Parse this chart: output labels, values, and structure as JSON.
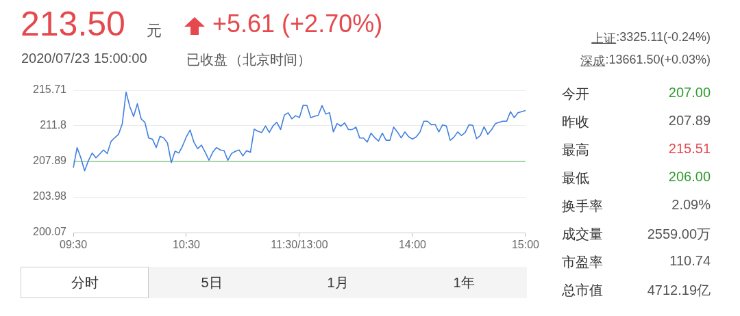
{
  "chart_data": {
    "type": "line",
    "title": "213.50",
    "annotations": [
      "元",
      "+5.61 (+2.70%)",
      "2020/07/23 15:00:00",
      "已收盘",
      "（北京时间）",
      "上证",
      ":3325.11(-0.24%)",
      "深成",
      ":13661.50(+0.03%)",
      "今开",
      "207.00",
      "昨收",
      "207.89",
      "最高",
      "215.51",
      "最低",
      "206.00",
      "换手率",
      "2.09%",
      "成交量",
      "2559.00万",
      "市盈率",
      "110.74",
      "总市值",
      "4712.19亿",
      "分时",
      "5日",
      "1月",
      "1年"
    ],
    "categories": [
      "09:30",
      null,
      null,
      null,
      null,
      null,
      null,
      null,
      null,
      null,
      null,
      null,
      null,
      null,
      null,
      null,
      null,
      null,
      null,
      null,
      null,
      null,
      null,
      null,
      null,
      null,
      null,
      null,
      null,
      null,
      "10:30",
      null,
      null,
      null,
      null,
      null,
      null,
      null,
      null,
      null,
      null,
      null,
      null,
      null,
      null,
      null,
      null,
      null,
      null,
      null,
      null,
      null,
      null,
      null,
      null,
      null,
      null,
      null,
      null,
      null,
      "11:30/13:00",
      null,
      null,
      null,
      null,
      null,
      null,
      null,
      null,
      null,
      null,
      null,
      null,
      null,
      null,
      null,
      null,
      null,
      null,
      null,
      null,
      null,
      null,
      null,
      null,
      null,
      null,
      null,
      null,
      null,
      "14:00",
      null,
      null,
      null,
      null,
      null,
      null,
      null,
      null,
      null,
      null,
      null,
      null,
      null,
      null,
      null,
      null,
      null,
      null,
      null,
      null,
      null,
      null,
      null,
      null,
      null,
      null,
      null,
      null,
      null,
      "15:00"
    ],
    "series": [
      {
        "color": "#3f7fe0",
        "values": [
          207.18,
          209.41,
          208.28,
          206.86,
          207.97,
          208.81,
          208.28,
          208.7,
          209.15,
          208.76,
          210.08,
          210.5,
          210.87,
          212.05,
          215.51,
          213.9,
          212.84,
          214.23,
          212.57,
          212.18,
          210.47,
          210.34,
          209.41,
          210.65,
          210.47,
          209.9,
          207.76,
          209.02,
          208.81,
          209.6,
          210.6,
          211.34,
          210.0,
          209.29,
          209.68,
          208.89,
          208.02,
          208.9,
          209.41,
          209.15,
          209.07,
          208.02,
          208.76,
          209.0,
          209.15,
          208.5,
          209.07,
          208.89,
          211.44,
          211.2,
          211.07,
          211.78,
          211.07,
          211.8,
          212.18,
          211.39,
          212.97,
          213.24,
          212.57,
          212.92,
          212.71,
          214.08,
          214.03,
          212.71,
          212.85,
          212.97,
          214.03,
          213.1,
          213.24,
          211.13,
          212.05,
          211.78,
          212.13,
          211.39,
          211.39,
          211.66,
          210.47,
          210.47,
          210.02,
          211.0,
          210.5,
          210.13,
          211.0,
          210.21,
          210.21,
          211.66,
          211.13,
          210.47,
          211.13,
          210.6,
          210.34,
          210.6,
          211.13,
          212.31,
          212.31,
          211.92,
          211.97,
          211.13,
          211.92,
          211.78,
          210.21,
          210.55,
          211.13,
          210.73,
          211.07,
          211.92,
          211.86,
          210.39,
          210.73,
          211.7,
          210.87,
          211.39,
          212.05,
          212.2,
          212.31,
          212.31,
          213.36,
          212.71,
          213.24,
          213.36,
          213.5
        ]
      }
    ],
    "ylim": [
      200.07,
      215.71
    ],
    "yticks": [
      200.07,
      203.98,
      207.89,
      211.8,
      215.71
    ],
    "grid": "y",
    "legend": false,
    "marker": "none",
    "line_style": "solid",
    "ref_lines": [
      {
        "axis": "y",
        "value": 207.89,
        "color": "#5cb85c"
      }
    ]
  }
}
